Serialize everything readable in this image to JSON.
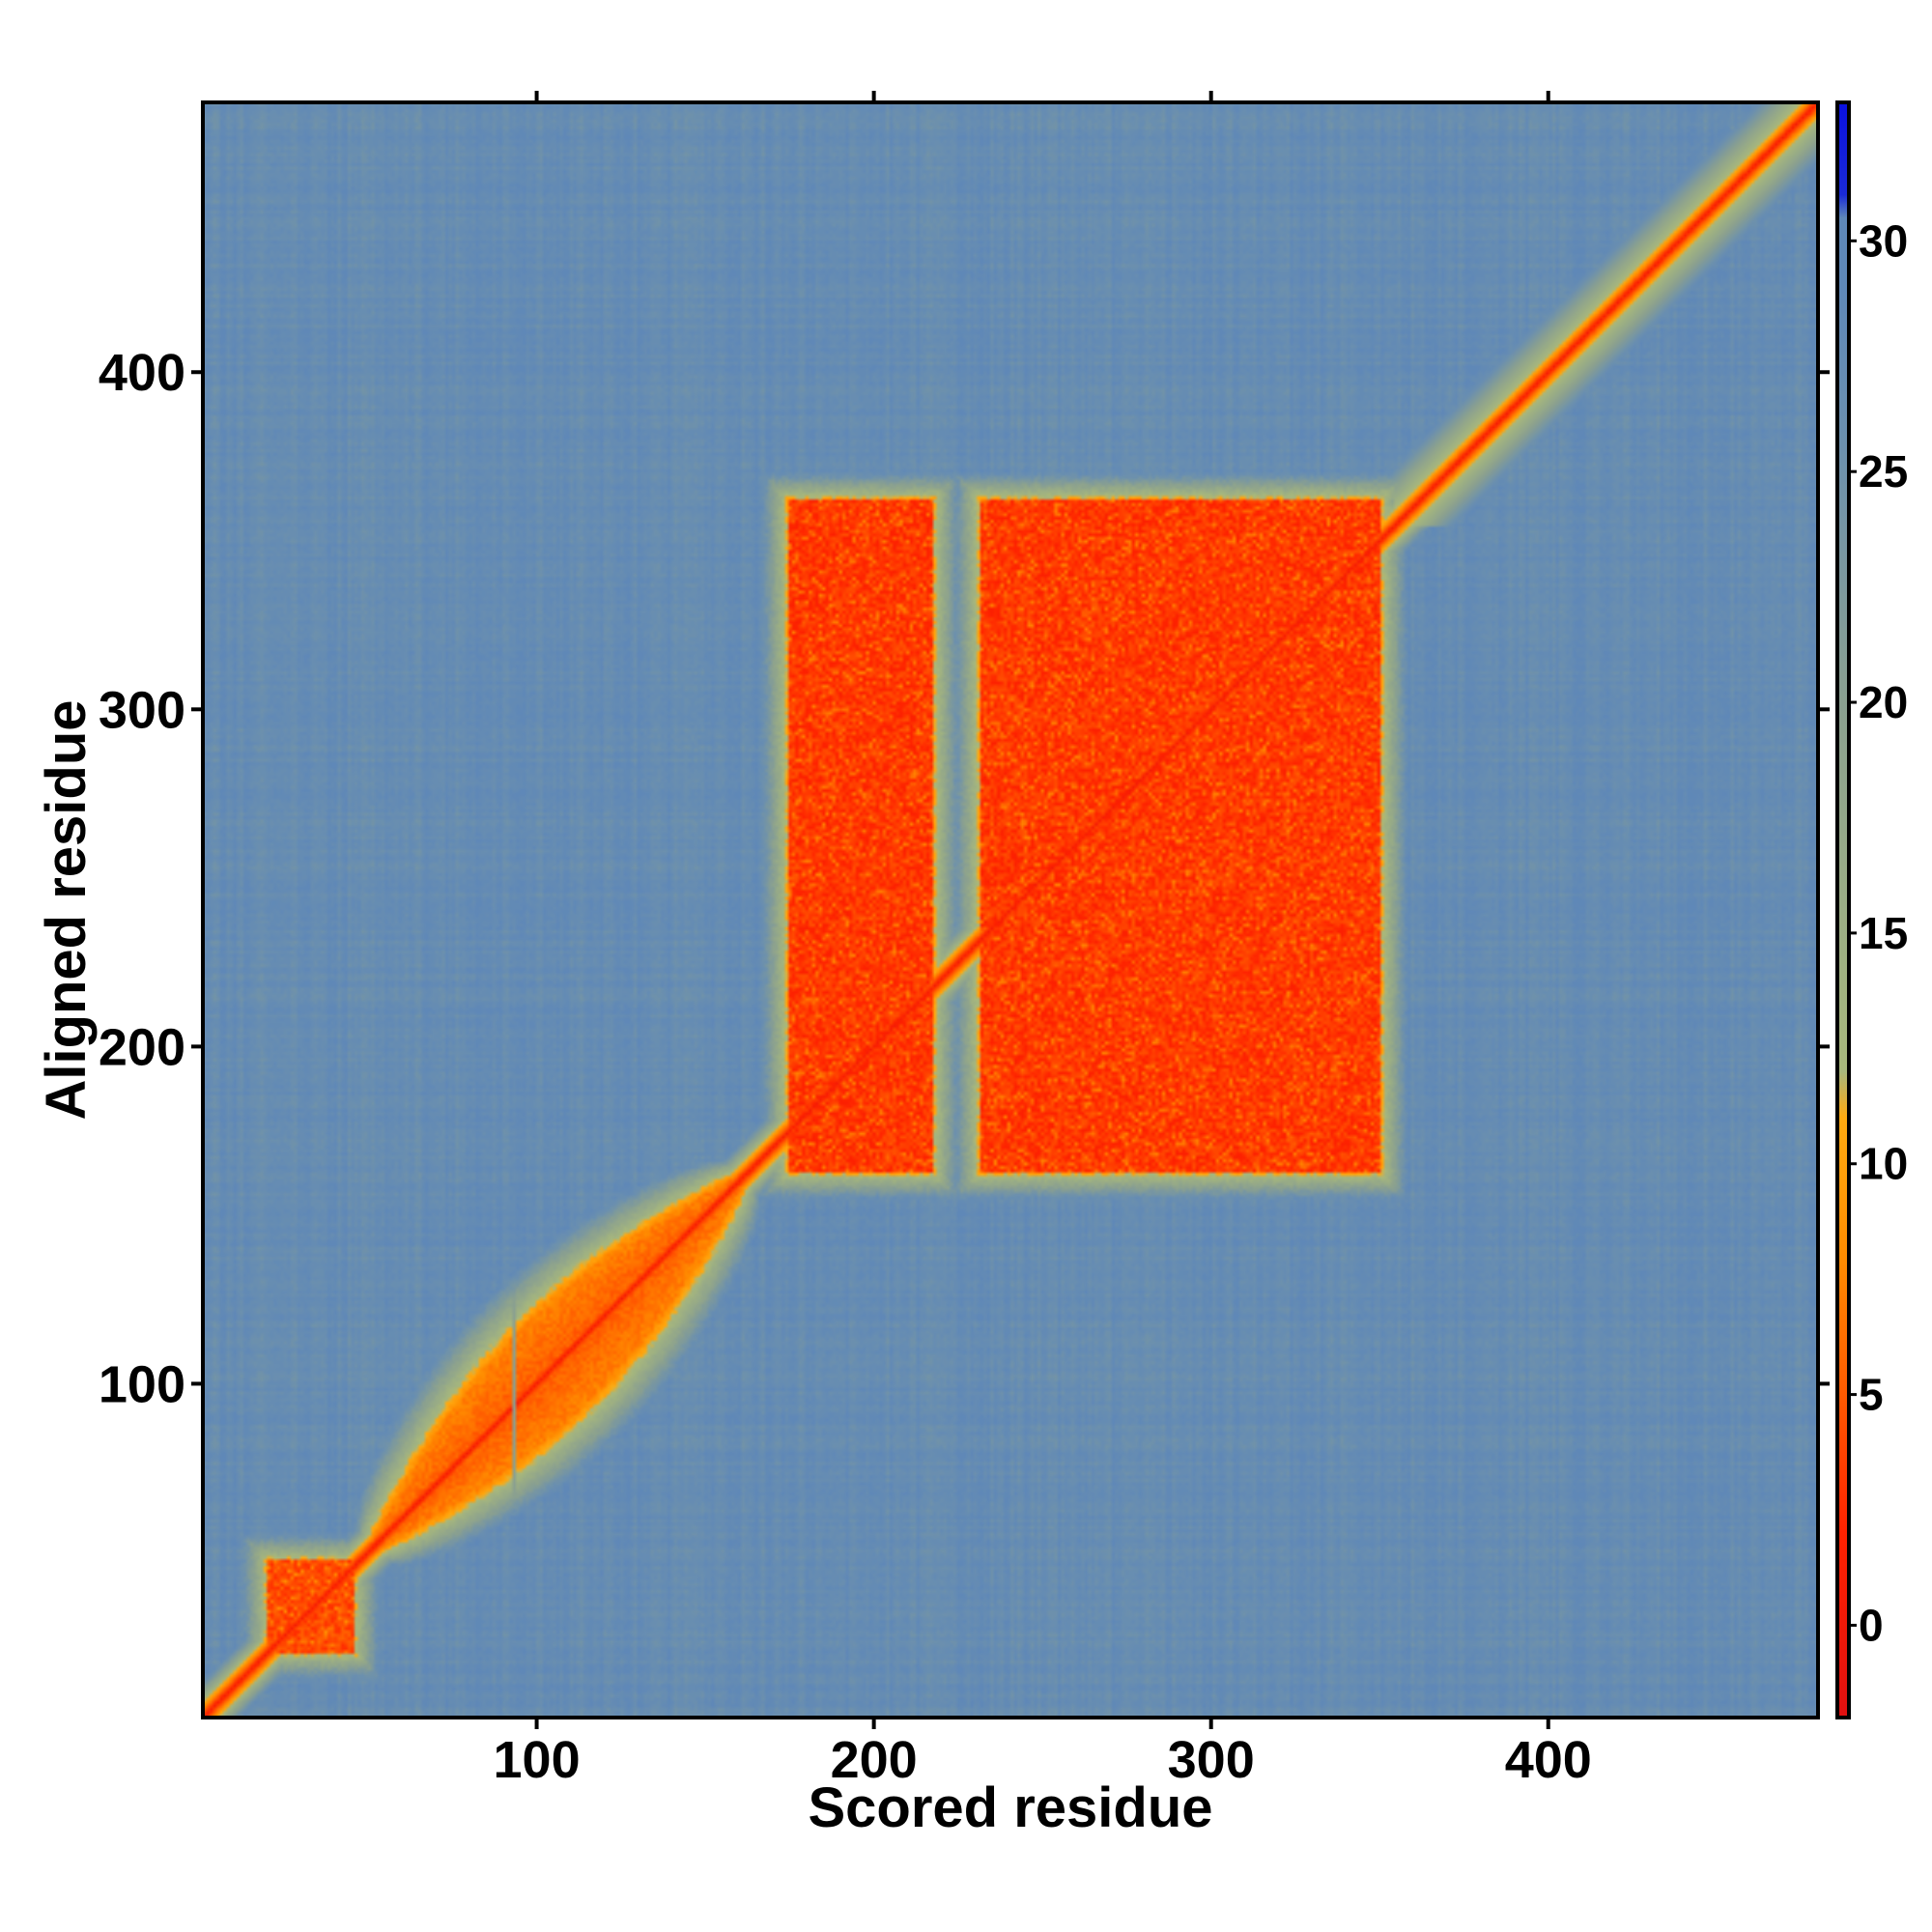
{
  "chart_data": {
    "type": "heatmap",
    "title": "",
    "xlabel": "Scored residue",
    "ylabel": "Aligned residue",
    "xlim": [
      1,
      480
    ],
    "ylim": [
      1,
      480
    ],
    "x_ticks": [
      100,
      200,
      300,
      400
    ],
    "y_ticks": [
      100,
      200,
      300,
      400
    ],
    "colorbar": {
      "range": [
        -2,
        33
      ],
      "ticks": [
        0,
        5,
        10,
        15,
        20,
        25,
        30
      ],
      "stops": [
        {
          "value": -2,
          "color": "#e01010"
        },
        {
          "value": 2,
          "color": "#ff2200"
        },
        {
          "value": 5,
          "color": "#ff5a00"
        },
        {
          "value": 8,
          "color": "#ff8c00"
        },
        {
          "value": 11,
          "color": "#ffaa10"
        },
        {
          "value": 12,
          "color": "#a8b87c"
        },
        {
          "value": 20,
          "color": "#8aa090"
        },
        {
          "value": 26,
          "color": "#6a8fb0"
        },
        {
          "value": 29,
          "color": "#5f88b8"
        },
        {
          "value": 30.5,
          "color": "#5f88b8"
        },
        {
          "value": 31,
          "color": "#1a2ad8"
        },
        {
          "value": 33,
          "color": "#0a10e0"
        }
      ]
    },
    "background_value": 27,
    "features": [
      {
        "kind": "diagonal",
        "value": 1,
        "halfwidth": 4
      },
      {
        "kind": "diagonal_band",
        "value": 6,
        "halfwidth": 10,
        "from": 355,
        "to": 480
      },
      {
        "kind": "block",
        "x": [
          20,
          45
        ],
        "y": [
          20,
          47
        ],
        "value": 4
      },
      {
        "kind": "lens",
        "from": 52,
        "to": 160,
        "width": 30,
        "value": 5
      },
      {
        "kind": "block",
        "x": [
          175,
          217
        ],
        "y": [
          163,
          362
        ],
        "value": 3
      },
      {
        "kind": "block",
        "x": [
          232,
          350
        ],
        "y": [
          163,
          362
        ],
        "value": 3
      },
      {
        "kind": "stripe",
        "axis": "x",
        "at": 93,
        "value": 20
      }
    ]
  }
}
